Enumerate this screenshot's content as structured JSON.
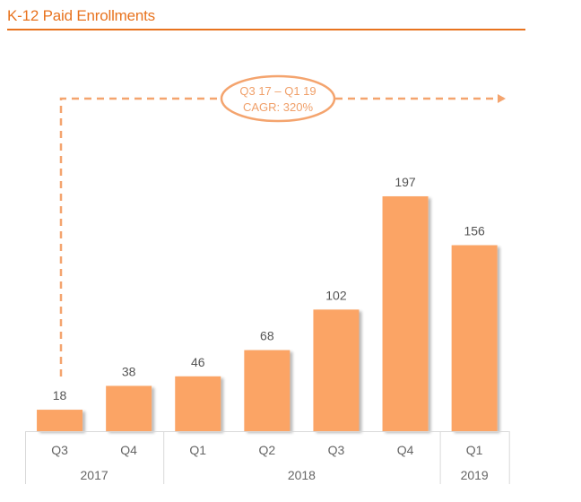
{
  "title": "K-12 Paid Enrollments",
  "colors": {
    "accent": "#e8731f",
    "bar": "#fba465",
    "annotation": "#f4a46e",
    "grid": "#d9d9d9"
  },
  "annotation": {
    "line1": "Q3 17 – Q1 19",
    "line2": "CAGR: 320%"
  },
  "chart_data": {
    "type": "bar",
    "title": "K-12 Paid Enrollments",
    "xlabel": "",
    "ylabel": "",
    "categories": [
      "Q3",
      "Q4",
      "Q1",
      "Q2",
      "Q3",
      "Q4",
      "Q1"
    ],
    "values": [
      18,
      38,
      46,
      68,
      102,
      197,
      156
    ],
    "groups": [
      {
        "label": "2017",
        "span": 2
      },
      {
        "label": "2018",
        "span": 4
      },
      {
        "label": "2019",
        "span": 1
      }
    ],
    "ylim": [
      0,
      197
    ],
    "grid": false,
    "legend": "none",
    "data_labels": true
  }
}
